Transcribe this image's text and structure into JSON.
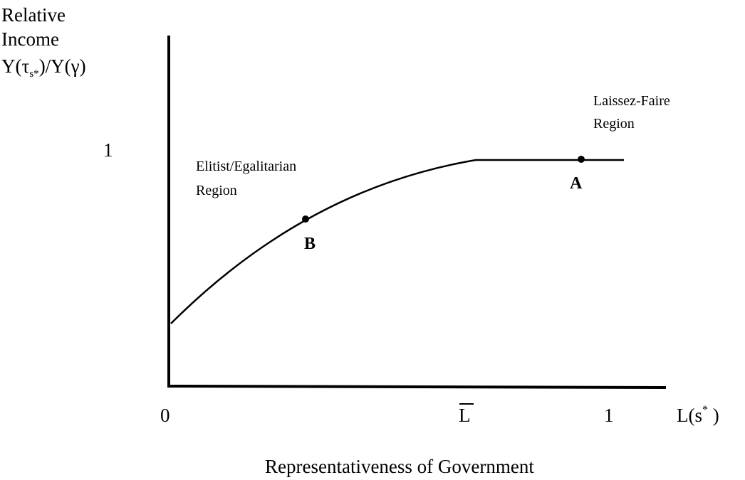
{
  "y_axis": {
    "label_lines": [
      "Relative",
      "Income"
    ],
    "ratio": {
      "prefix": "Y(τ",
      "subscript": "s*",
      "suffix": ")/Y(γ)"
    },
    "tick": "1"
  },
  "x_axis": {
    "origin": "0",
    "threshold": "L",
    "tick": "1",
    "label": {
      "prefix": "L(s",
      "superscript": "*",
      "suffix": " )"
    },
    "title": "Representativeness of Government"
  },
  "regions": [
    {
      "lines": [
        "Elitist/Egalitarian",
        "Region"
      ]
    },
    {
      "lines": [
        "Laissez-Faire",
        "Region"
      ]
    }
  ],
  "points": [
    {
      "label": "A"
    },
    {
      "label": "B"
    }
  ]
}
